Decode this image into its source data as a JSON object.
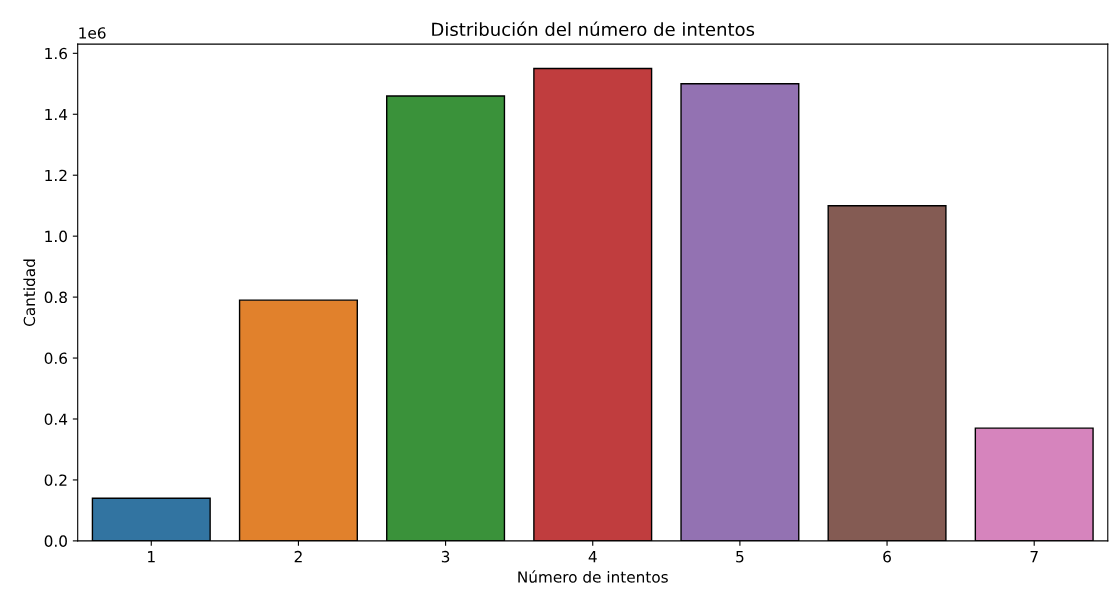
{
  "chart_data": {
    "type": "bar",
    "title": "Distribución del número de intentos",
    "xlabel": "Número de intentos",
    "ylabel": "Cantidad",
    "categories": [
      "1",
      "2",
      "3",
      "4",
      "5",
      "6",
      "7"
    ],
    "values": [
      0.14,
      0.79,
      1.46,
      1.55,
      1.5,
      1.1,
      0.37
    ],
    "colors": [
      "#3274a1",
      "#e1812c",
      "#3a923a",
      "#c03d3e",
      "#9372b2",
      "#845b53",
      "#d684bd"
    ],
    "ylim": [
      0.0,
      1.63
    ],
    "yticks": [
      {
        "value": 0,
        "label": "0.0"
      },
      0.2,
      0.4,
      0.6,
      0.8,
      {
        "value": 1,
        "label": "1.0"
      },
      1.2,
      1.4,
      1.6
    ],
    "annotations": [
      "1e6"
    ],
    "grid": false,
    "legend": false
  }
}
